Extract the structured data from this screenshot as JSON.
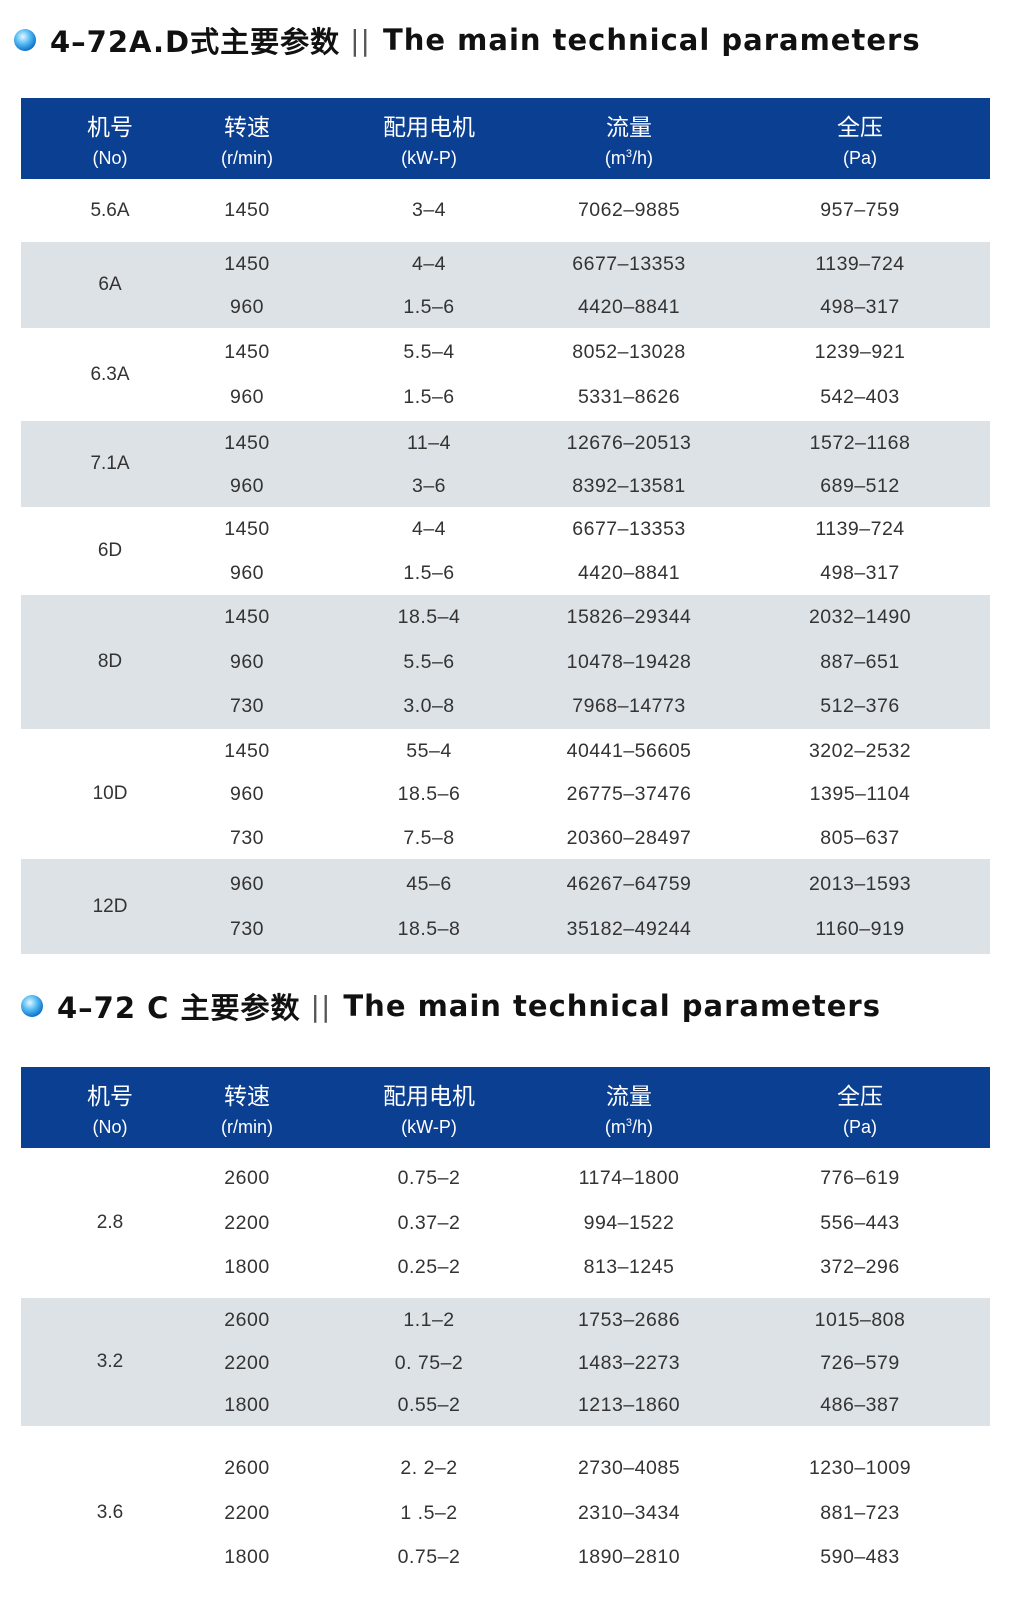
{
  "colors": {
    "header_bg": "#0b3f91",
    "stripe": "#dde2e7",
    "bullet": "#1a86d8"
  },
  "section1": {
    "title_cn": "4–72A.D式主要参数",
    "separator": "||",
    "title_en": "The main technical parameters",
    "headers": [
      {
        "cn": "机号",
        "en": "(No)"
      },
      {
        "cn": "转速",
        "en": "(r/min)"
      },
      {
        "cn": "配用电机",
        "en": "(kW-P)"
      },
      {
        "cn": "流量",
        "en": "(m",
        "sup": "3",
        "en2": "/h)"
      },
      {
        "cn": "全压",
        "en": "(Pa)"
      }
    ],
    "groups": [
      {
        "model": "5.6A",
        "rows": [
          [
            "1450",
            "3–4",
            "7062–9885",
            "957–759"
          ]
        ]
      },
      {
        "model": "6A",
        "rows": [
          [
            "1450",
            "4–4",
            "6677–13353",
            "1139–724"
          ],
          [
            "960",
            "1.5–6",
            "4420–8841",
            "498–317"
          ]
        ]
      },
      {
        "model": "6.3A",
        "rows": [
          [
            "1450",
            "5.5–4",
            "8052–13028",
            "1239–921"
          ],
          [
            "960",
            "1.5–6",
            "5331–8626",
            "542–403"
          ]
        ]
      },
      {
        "model": "7.1A",
        "rows": [
          [
            "1450",
            "11–4",
            "12676–20513",
            "1572–1168"
          ],
          [
            "960",
            "3–6",
            "8392–13581",
            "689–512"
          ]
        ]
      },
      {
        "model": "6D",
        "rows": [
          [
            "1450",
            "4–4",
            "6677–13353",
            "1139–724"
          ],
          [
            "960",
            "1.5–6",
            "4420–8841",
            "498–317"
          ]
        ]
      },
      {
        "model": "8D",
        "rows": [
          [
            "1450",
            "18.5–4",
            "15826–29344",
            "2032–1490"
          ],
          [
            "960",
            "5.5–6",
            "10478–19428",
            "887–651"
          ],
          [
            "730",
            "3.0–8",
            "7968–14773",
            "512–376"
          ]
        ]
      },
      {
        "model": "10D",
        "rows": [
          [
            "1450",
            "55–4",
            "40441–56605",
            "3202–2532"
          ],
          [
            "960",
            "18.5–6",
            "26775–37476",
            "1395–1104"
          ],
          [
            "730",
            "7.5–8",
            "20360–28497",
            "805–637"
          ]
        ]
      },
      {
        "model": "12D",
        "rows": [
          [
            "960",
            "45–6",
            "46267–64759",
            "2013–1593"
          ],
          [
            "730",
            "18.5–8",
            "35182–49244",
            "1160–919"
          ]
        ]
      }
    ]
  },
  "section2": {
    "title_cn": "4–72 C 主要参数",
    "separator": "||",
    "title_en": "The main technical parameters",
    "headers": [
      {
        "cn": "机号",
        "en": "(No)"
      },
      {
        "cn": "转速",
        "en": "(r/min)"
      },
      {
        "cn": "配用电机",
        "en": "(kW-P)"
      },
      {
        "cn": "流量",
        "en": "(m",
        "sup": "3",
        "en2": "/h)"
      },
      {
        "cn": "全压",
        "en": "(Pa)"
      }
    ],
    "groups": [
      {
        "model": "2.8",
        "rows": [
          [
            "2600",
            "0.75–2",
            "1174–1800",
            "776–619"
          ],
          [
            "2200",
            "0.37–2",
            "994–1522",
            "556–443"
          ],
          [
            "1800",
            "0.25–2",
            "813–1245",
            "372–296"
          ]
        ]
      },
      {
        "model": "3.2",
        "rows": [
          [
            "2600",
            "1.1–2",
            "1753–2686",
            "1015–808"
          ],
          [
            "2200",
            "0. 75–2",
            "1483–2273",
            "726–579"
          ],
          [
            "1800",
            "0.55–2",
            "1213–1860",
            "486–387"
          ]
        ]
      },
      {
        "model": "3.6",
        "rows": [
          [
            "2600",
            "2. 2–2",
            "2730–4085",
            "1230–1009"
          ],
          [
            "2200",
            "1 .5–2",
            "2310–3434",
            "881–723"
          ],
          [
            "1800",
            "0.75–2",
            "1890–2810",
            "590–483"
          ]
        ]
      }
    ]
  }
}
